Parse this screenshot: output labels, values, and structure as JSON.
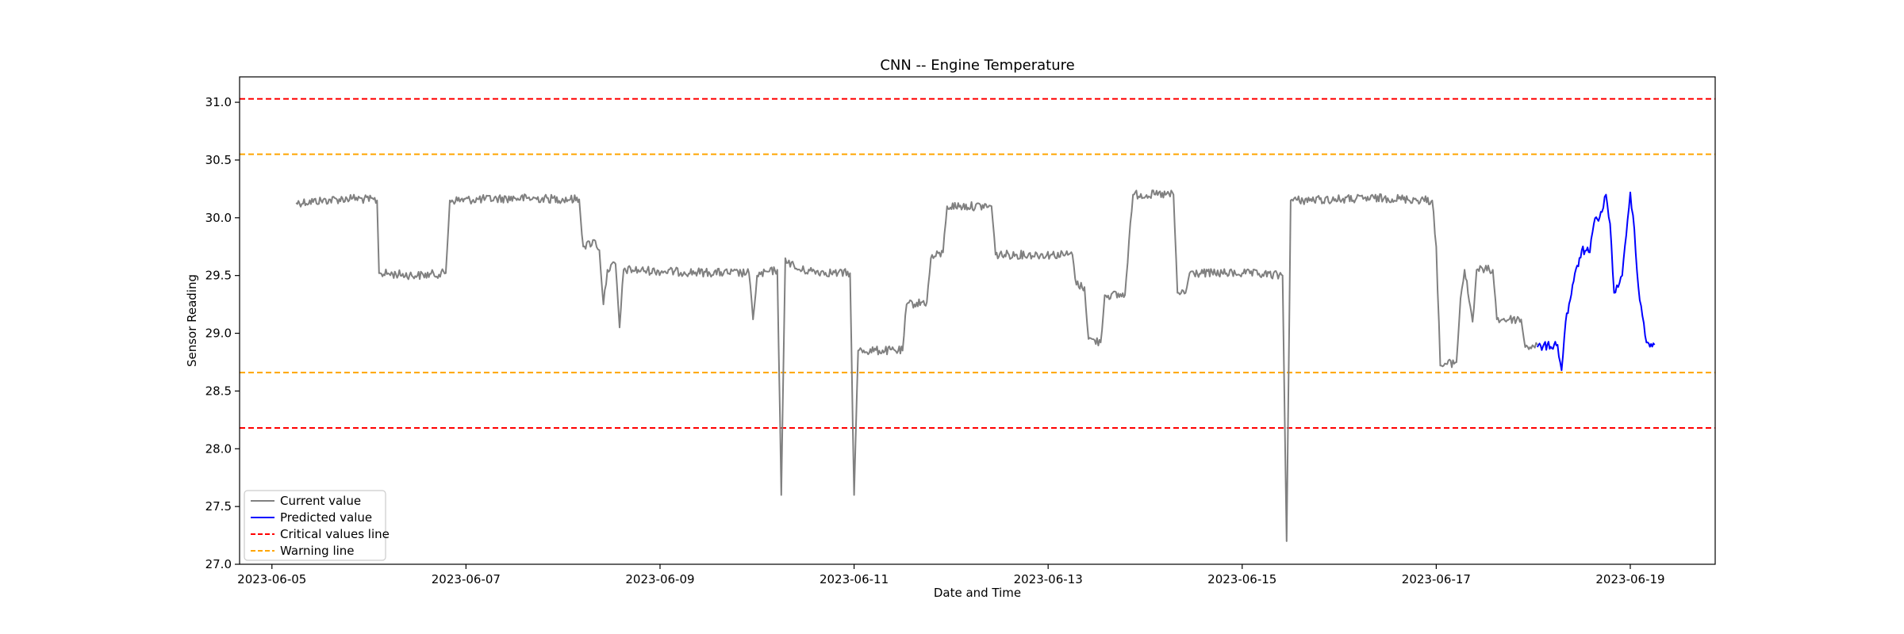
{
  "chart_data": {
    "type": "line",
    "title": "CNN -- Engine Temperature",
    "xlabel": "Date and Time",
    "ylabel": "Sensor Reading",
    "xlim": [
      "2023-06-04T16:00",
      "2023-06-19T21:00"
    ],
    "ylim": [
      27.0,
      31.22
    ],
    "x_ticks": [
      "2023-06-05",
      "2023-06-07",
      "2023-06-09",
      "2023-06-11",
      "2023-06-13",
      "2023-06-15",
      "2023-06-17",
      "2023-06-19"
    ],
    "y_ticks": [
      "27.0",
      "27.5",
      "28.0",
      "28.5",
      "29.0",
      "29.5",
      "30.0",
      "30.5",
      "31.0"
    ],
    "grid": false,
    "legend_position": "lower-left",
    "series": [
      {
        "name": "Current value",
        "color": "#808080",
        "style": "solid",
        "points": [
          [
            "2023-06-05T06:00",
            30.13
          ],
          [
            "2023-06-05T20:00",
            30.17
          ],
          [
            "2023-06-06T02:00",
            30.15
          ],
          [
            "2023-06-06T02:30",
            29.52
          ],
          [
            "2023-06-06T12:00",
            29.5
          ],
          [
            "2023-06-06T19:00",
            29.52
          ],
          [
            "2023-06-06T20:00",
            30.15
          ],
          [
            "2023-06-07T12:00",
            30.17
          ],
          [
            "2023-06-08T04:00",
            30.16
          ],
          [
            "2023-06-08T05:00",
            29.75
          ],
          [
            "2023-06-08T08:00",
            29.8
          ],
          [
            "2023-06-08T09:00",
            29.72
          ],
          [
            "2023-06-08T10:00",
            29.25
          ],
          [
            "2023-06-08T11:00",
            29.55
          ],
          [
            "2023-06-08T13:00",
            29.6
          ],
          [
            "2023-06-08T14:00",
            29.05
          ],
          [
            "2023-06-08T15:00",
            29.55
          ],
          [
            "2023-06-09T06:00",
            29.53
          ],
          [
            "2023-06-09T22:00",
            29.52
          ],
          [
            "2023-06-09T23:00",
            29.12
          ],
          [
            "2023-06-10T00:00",
            29.5
          ],
          [
            "2023-06-10T05:00",
            29.55
          ],
          [
            "2023-06-10T06:00",
            27.6
          ],
          [
            "2023-06-10T07:00",
            29.65
          ],
          [
            "2023-06-10T10:00",
            29.55
          ],
          [
            "2023-06-10T20:00",
            29.52
          ],
          [
            "2023-06-10T23:00",
            29.52
          ],
          [
            "2023-06-11T00:00",
            27.6
          ],
          [
            "2023-06-11T01:00",
            28.85
          ],
          [
            "2023-06-11T12:00",
            28.85
          ],
          [
            "2023-06-11T13:00",
            29.25
          ],
          [
            "2023-06-11T18:00",
            29.27
          ],
          [
            "2023-06-11T19:00",
            29.65
          ],
          [
            "2023-06-11T22:00",
            29.7
          ],
          [
            "2023-06-11T23:00",
            30.1
          ],
          [
            "2023-06-12T10:00",
            30.1
          ],
          [
            "2023-06-12T11:00",
            29.68
          ],
          [
            "2023-06-13T06:00",
            29.68
          ],
          [
            "2023-06-13T07:00",
            29.42
          ],
          [
            "2023-06-13T09:00",
            29.4
          ],
          [
            "2023-06-13T10:00",
            28.95
          ],
          [
            "2023-06-13T13:00",
            28.92
          ],
          [
            "2023-06-13T14:00",
            29.33
          ],
          [
            "2023-06-13T19:00",
            29.33
          ],
          [
            "2023-06-13T20:00",
            29.8
          ],
          [
            "2023-06-13T21:00",
            30.2
          ],
          [
            "2023-06-14T07:00",
            30.2
          ],
          [
            "2023-06-14T08:00",
            29.35
          ],
          [
            "2023-06-14T10:00",
            29.35
          ],
          [
            "2023-06-14T11:00",
            29.52
          ],
          [
            "2023-06-15T00:00",
            29.52
          ],
          [
            "2023-06-15T10:00",
            29.5
          ],
          [
            "2023-06-15T11:00",
            27.2
          ],
          [
            "2023-06-15T12:00",
            30.15
          ],
          [
            "2023-06-16T12:00",
            30.17
          ],
          [
            "2023-06-16T23:00",
            30.15
          ],
          [
            "2023-06-17T00:00",
            29.75
          ],
          [
            "2023-06-17T01:00",
            28.72
          ],
          [
            "2023-06-17T05:00",
            28.75
          ],
          [
            "2023-06-17T06:00",
            29.3
          ],
          [
            "2023-06-17T07:00",
            29.55
          ],
          [
            "2023-06-17T09:00",
            29.1
          ],
          [
            "2023-06-17T10:00",
            29.55
          ],
          [
            "2023-06-17T14:00",
            29.55
          ],
          [
            "2023-06-17T15:00",
            29.12
          ],
          [
            "2023-06-17T21:00",
            29.12
          ],
          [
            "2023-06-17T22:00",
            28.88
          ],
          [
            "2023-06-18T01:00",
            28.9
          ]
        ]
      },
      {
        "name": "Predicted value",
        "color": "#0000ff",
        "style": "solid",
        "points": [
          [
            "2023-06-18T01:00",
            28.88
          ],
          [
            "2023-06-18T06:00",
            28.9
          ],
          [
            "2023-06-18T07:00",
            28.68
          ],
          [
            "2023-06-18T08:00",
            29.1
          ],
          [
            "2023-06-18T10:00",
            29.45
          ],
          [
            "2023-06-18T12:00",
            29.72
          ],
          [
            "2023-06-18T14:00",
            29.7
          ],
          [
            "2023-06-18T15:00",
            29.95
          ],
          [
            "2023-06-18T17:00",
            30.05
          ],
          [
            "2023-06-18T18:00",
            30.2
          ],
          [
            "2023-06-18T19:00",
            29.95
          ],
          [
            "2023-06-18T20:00",
            29.35
          ],
          [
            "2023-06-18T21:00",
            29.4
          ],
          [
            "2023-06-18T22:00",
            29.5
          ],
          [
            "2023-06-18T23:00",
            29.85
          ],
          [
            "2023-06-19T00:00",
            30.22
          ],
          [
            "2023-06-19T01:00",
            29.9
          ],
          [
            "2023-06-19T02:00",
            29.4
          ],
          [
            "2023-06-19T03:00",
            29.15
          ],
          [
            "2023-06-19T04:00",
            28.92
          ],
          [
            "2023-06-19T06:00",
            28.9
          ]
        ]
      }
    ],
    "reference_lines": [
      {
        "y": 31.03,
        "color": "#ff0000",
        "style": "dashed"
      },
      {
        "y": 28.18,
        "color": "#ff0000",
        "style": "dashed"
      },
      {
        "y": 30.55,
        "color": "#ffa500",
        "style": "dashed"
      },
      {
        "y": 28.66,
        "color": "#ffa500",
        "style": "dashed"
      }
    ],
    "legend": [
      {
        "label": "Current value",
        "color": "#808080",
        "style": "solid"
      },
      {
        "label": "Predicted value",
        "color": "#0000ff",
        "style": "solid"
      },
      {
        "label": "Critical values line",
        "color": "#ff0000",
        "style": "dashed"
      },
      {
        "label": "Warning line",
        "color": "#ffa500",
        "style": "dashed"
      }
    ]
  }
}
